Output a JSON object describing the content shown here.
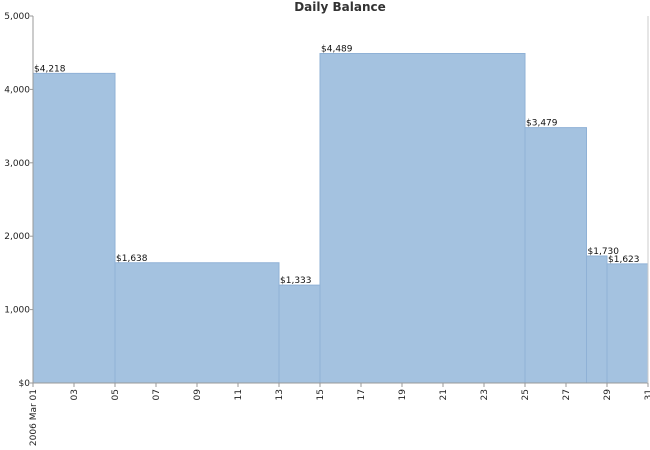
{
  "chart_data": {
    "type": "area",
    "title": "Daily Balance",
    "xlabel": "",
    "ylabel": "",
    "ylim": [
      0,
      5000
    ],
    "y_ticks": [
      0,
      1000,
      2000,
      3000,
      4000,
      5000
    ],
    "y_tick_labels": [
      "$0",
      "1,000",
      "2,000",
      "3,000",
      "4,000",
      "5,000"
    ],
    "x_ticks": [
      1,
      3,
      5,
      7,
      9,
      11,
      13,
      15,
      17,
      19,
      21,
      23,
      25,
      27,
      29,
      31
    ],
    "x_tick_labels": [
      "2006 Mar 01",
      "03",
      "05",
      "07",
      "09",
      "11",
      "13",
      "15",
      "17",
      "19",
      "21",
      "23",
      "25",
      "27",
      "29",
      "31"
    ],
    "xlim": [
      1,
      31
    ],
    "step": true,
    "grid": false,
    "colors": {
      "fill": "#a4c2e0",
      "stroke": "#8fb1d6"
    },
    "series": [
      {
        "points": [
          {
            "x": 1,
            "y": 4218,
            "label": "$4,218"
          },
          {
            "x": 5,
            "y": 1638,
            "label": "$1,638"
          },
          {
            "x": 13,
            "y": 1333,
            "label": "$1,333"
          },
          {
            "x": 15,
            "y": 4489,
            "label": "$4,489"
          },
          {
            "x": 25,
            "y": 3479,
            "label": "$3,479"
          },
          {
            "x": 28,
            "y": 1730,
            "label": "$1,730"
          },
          {
            "x": 29,
            "y": 1623,
            "label": "$1,623"
          }
        ]
      }
    ]
  }
}
